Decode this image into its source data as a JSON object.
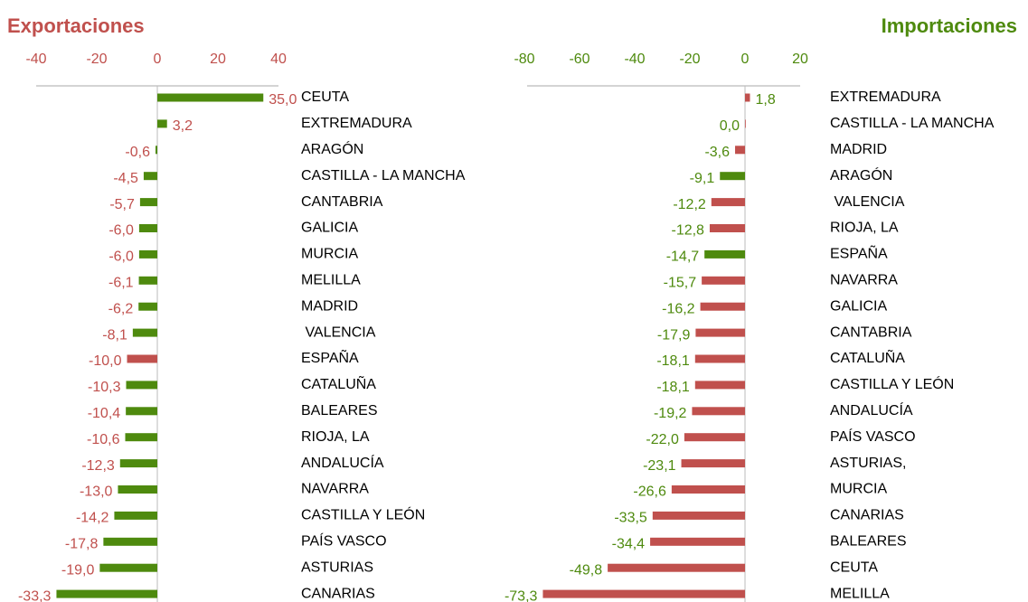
{
  "chart_data": [
    {
      "type": "hbar",
      "title": "Exportaciones",
      "title_color": "#c0504d",
      "label_color": "#c0504d",
      "categories": [
        "CEUTA",
        "EXTREMADURA",
        "ARAGÓN",
        "CASTILLA - LA MANCHA",
        "CANTABRIA",
        "GALICIA",
        "MURCIA",
        "MELILLA",
        "MADRID",
        " VALENCIA",
        "ESPAÑA",
        "CATALUÑA",
        "BALEARES",
        "RIOJA, LA",
        "ANDALUCÍA",
        "NAVARRA",
        "CASTILLA Y LEÓN",
        "PAÍS VASCO",
        "ASTURIAS",
        "CANARIAS"
      ],
      "values": [
        35.0,
        3.2,
        -0.6,
        -4.5,
        -5.7,
        -6.0,
        -6.0,
        -6.1,
        -6.2,
        -8.1,
        -10.0,
        -10.3,
        -10.4,
        -10.6,
        -12.3,
        -13.0,
        -14.2,
        -17.8,
        -19.0,
        -33.3
      ],
      "value_labels": [
        "35,0",
        "3,2",
        "-0,6",
        "-4,5",
        "-5,7",
        "-6,0",
        "-6,0",
        "-6,1",
        "-6,2",
        "-8,1",
        "-10,0",
        "-10,3",
        "-10,4",
        "-10,6",
        "-12,3",
        "-13,0",
        "-14,2",
        "-17,8",
        "-19,0",
        "-33,3"
      ],
      "colors": [
        "#4e8a0e",
        "#4e8a0e",
        "#4e8a0e",
        "#4e8a0e",
        "#4e8a0e",
        "#4e8a0e",
        "#4e8a0e",
        "#4e8a0e",
        "#4e8a0e",
        "#4e8a0e",
        "#c0504d",
        "#4e8a0e",
        "#4e8a0e",
        "#4e8a0e",
        "#4e8a0e",
        "#4e8a0e",
        "#4e8a0e",
        "#4e8a0e",
        "#4e8a0e",
        "#4e8a0e"
      ],
      "xlim": [
        -40,
        40
      ],
      "xticks": [
        -40,
        -20,
        0,
        20,
        40
      ]
    },
    {
      "type": "hbar",
      "title": "Importaciones",
      "title_color": "#4e8a0e",
      "label_color": "#4e8a0e",
      "categories": [
        "EXTREMADURA",
        "CASTILLA - LA MANCHA",
        "MADRID",
        "ARAGÓN",
        " VALENCIA",
        "RIOJA, LA",
        "ESPAÑA",
        "NAVARRA",
        "GALICIA",
        "CANTABRIA",
        "CATALUÑA",
        "CASTILLA Y LEÓN",
        "ANDALUCÍA",
        "PAÍS VASCO",
        "ASTURIAS,",
        "MURCIA",
        "CANARIAS",
        "BALEARES",
        "CEUTA",
        "MELILLA"
      ],
      "values": [
        1.8,
        0.0,
        -3.6,
        -9.1,
        -12.2,
        -12.8,
        -14.7,
        -15.7,
        -16.2,
        -17.9,
        -18.1,
        -18.1,
        -19.2,
        -22.0,
        -23.1,
        -26.6,
        -33.5,
        -34.4,
        -49.8,
        -73.3
      ],
      "value_labels": [
        "1,8",
        "0,0",
        "-3,6",
        "-9,1",
        "-12,2",
        "-12,8",
        "-14,7",
        "-15,7",
        "-16,2",
        "-17,9",
        "-18,1",
        "-18,1",
        "-19,2",
        "-22,0",
        "-23,1",
        "-26,6",
        "-33,5",
        "-34,4",
        "-49,8",
        "-73,3"
      ],
      "colors": [
        "#c0504d",
        "#c0504d",
        "#c0504d",
        "#4e8a0e",
        "#c0504d",
        "#c0504d",
        "#4e8a0e",
        "#c0504d",
        "#c0504d",
        "#c0504d",
        "#c0504d",
        "#c0504d",
        "#c0504d",
        "#c0504d",
        "#c0504d",
        "#c0504d",
        "#c0504d",
        "#c0504d",
        "#c0504d",
        "#c0504d"
      ],
      "xlim": [
        -80,
        20
      ],
      "xticks": [
        -80,
        -60,
        -40,
        -20,
        0,
        20
      ]
    }
  ]
}
